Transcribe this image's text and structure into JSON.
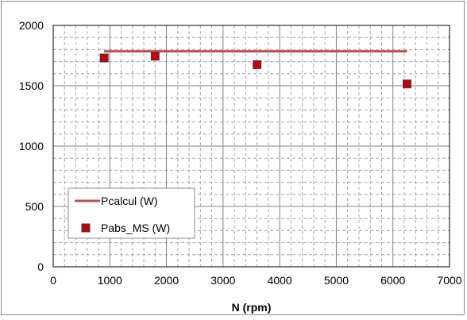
{
  "chart_data": {
    "type": "line",
    "title": "",
    "xlabel": "N (rpm)",
    "ylabel": "",
    "xlim": [
      0,
      7000
    ],
    "ylim": [
      0,
      2000
    ],
    "x_ticks": [
      0,
      1000,
      2000,
      3000,
      4000,
      5000,
      6000,
      7000
    ],
    "y_ticks": [
      0,
      500,
      1000,
      1500,
      2000
    ],
    "grid": {
      "major": true,
      "minor": true,
      "minor_style": "dashed"
    },
    "legend_position": "bottom-left",
    "series": [
      {
        "name": "Pcalcul (W)",
        "kind": "line",
        "color": "#c0504d",
        "x": [
          900,
          6250
        ],
        "y": [
          1785,
          1785
        ]
      },
      {
        "name": "Pabs_MS (W)",
        "kind": "scatter",
        "marker": "square",
        "color": "#c00000",
        "x": [
          900,
          1800,
          3600,
          6250
        ],
        "y": [
          1730,
          1745,
          1675,
          1515
        ]
      }
    ]
  }
}
